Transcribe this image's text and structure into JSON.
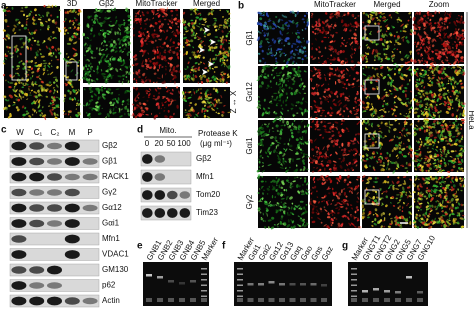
{
  "panel_a": {
    "label": "a",
    "columns": [
      "3D",
      "Gβ2",
      "MitoTracker",
      "Merged"
    ],
    "axis_label": "Z ↔ X"
  },
  "panel_b": {
    "label": "b",
    "columns": [
      "MitoTracker",
      "Merged",
      "Zoom"
    ],
    "rows": [
      "Gβ1",
      "Gα12",
      "Gαi1",
      "Gγ2"
    ],
    "cell_line": "HeLa"
  },
  "panel_c": {
    "label": "c",
    "columns": [
      "W",
      "C₁",
      "C₂",
      "M",
      "P"
    ],
    "rows": [
      "Gβ2",
      "Gβ1",
      "RACK1",
      "Gγ2",
      "Gα12",
      "Gαi1",
      "Mfn1",
      "VDAC1",
      "GM130",
      "p62",
      "Actin"
    ]
  },
  "panel_d": {
    "label": "d",
    "group": "Mito.",
    "treatment": "Protease K",
    "unit": "(μg ml⁻¹)",
    "columns": [
      0,
      20,
      50,
      100
    ],
    "rows": [
      "Gβ2",
      "Mfn1",
      "Tom20",
      "Tim23"
    ]
  },
  "panel_e": {
    "label": "e",
    "lanes": [
      "GNB1",
      "GNB2",
      "GNB3",
      "GNB4",
      "GNB5",
      "Marker"
    ]
  },
  "panel_f": {
    "label": "f",
    "lanes": [
      "Marker",
      "Gαi1",
      "Gαi2",
      "Gα12",
      "Gα13",
      "Gαq",
      "Gαo",
      "Gαs",
      "Gαz"
    ]
  },
  "panel_g": {
    "label": "g",
    "lanes": [
      "Marker",
      "GNGT1",
      "GNGT2",
      "GNG2",
      "GNG5",
      "GNG7",
      "GNG10"
    ]
  }
}
